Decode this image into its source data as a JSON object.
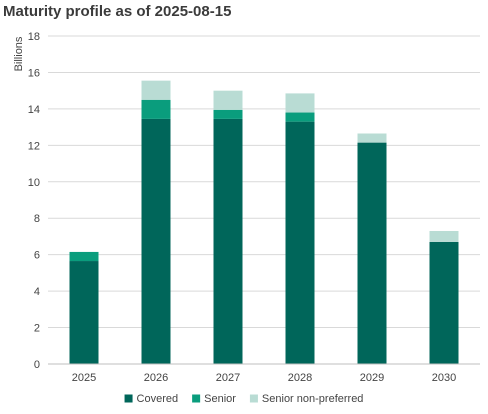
{
  "chart_data": {
    "type": "bar",
    "stacked": true,
    "title": "Maturity profile as of 2025-08-15",
    "xlabel": "",
    "ylabel": "Billions",
    "categories": [
      "2025",
      "2026",
      "2027",
      "2028",
      "2029",
      "2030"
    ],
    "series": [
      {
        "name": "Covered",
        "color": "#00665a",
        "values": [
          5.65,
          13.45,
          13.45,
          13.3,
          12.15,
          6.7
        ]
      },
      {
        "name": "Senior",
        "color": "#0a9d7d",
        "values": [
          0.5,
          1.05,
          0.5,
          0.5,
          0.0,
          0.0
        ]
      },
      {
        "name": "Senior non-preferred",
        "color": "#b9dcd4",
        "values": [
          0.0,
          1.05,
          1.05,
          1.05,
          0.5,
          0.6
        ]
      }
    ],
    "ylim": [
      0,
      18
    ],
    "yticks": [
      0,
      2,
      4,
      6,
      8,
      10,
      12,
      14,
      16,
      18
    ],
    "grid": true,
    "legend_position": "bottom"
  }
}
